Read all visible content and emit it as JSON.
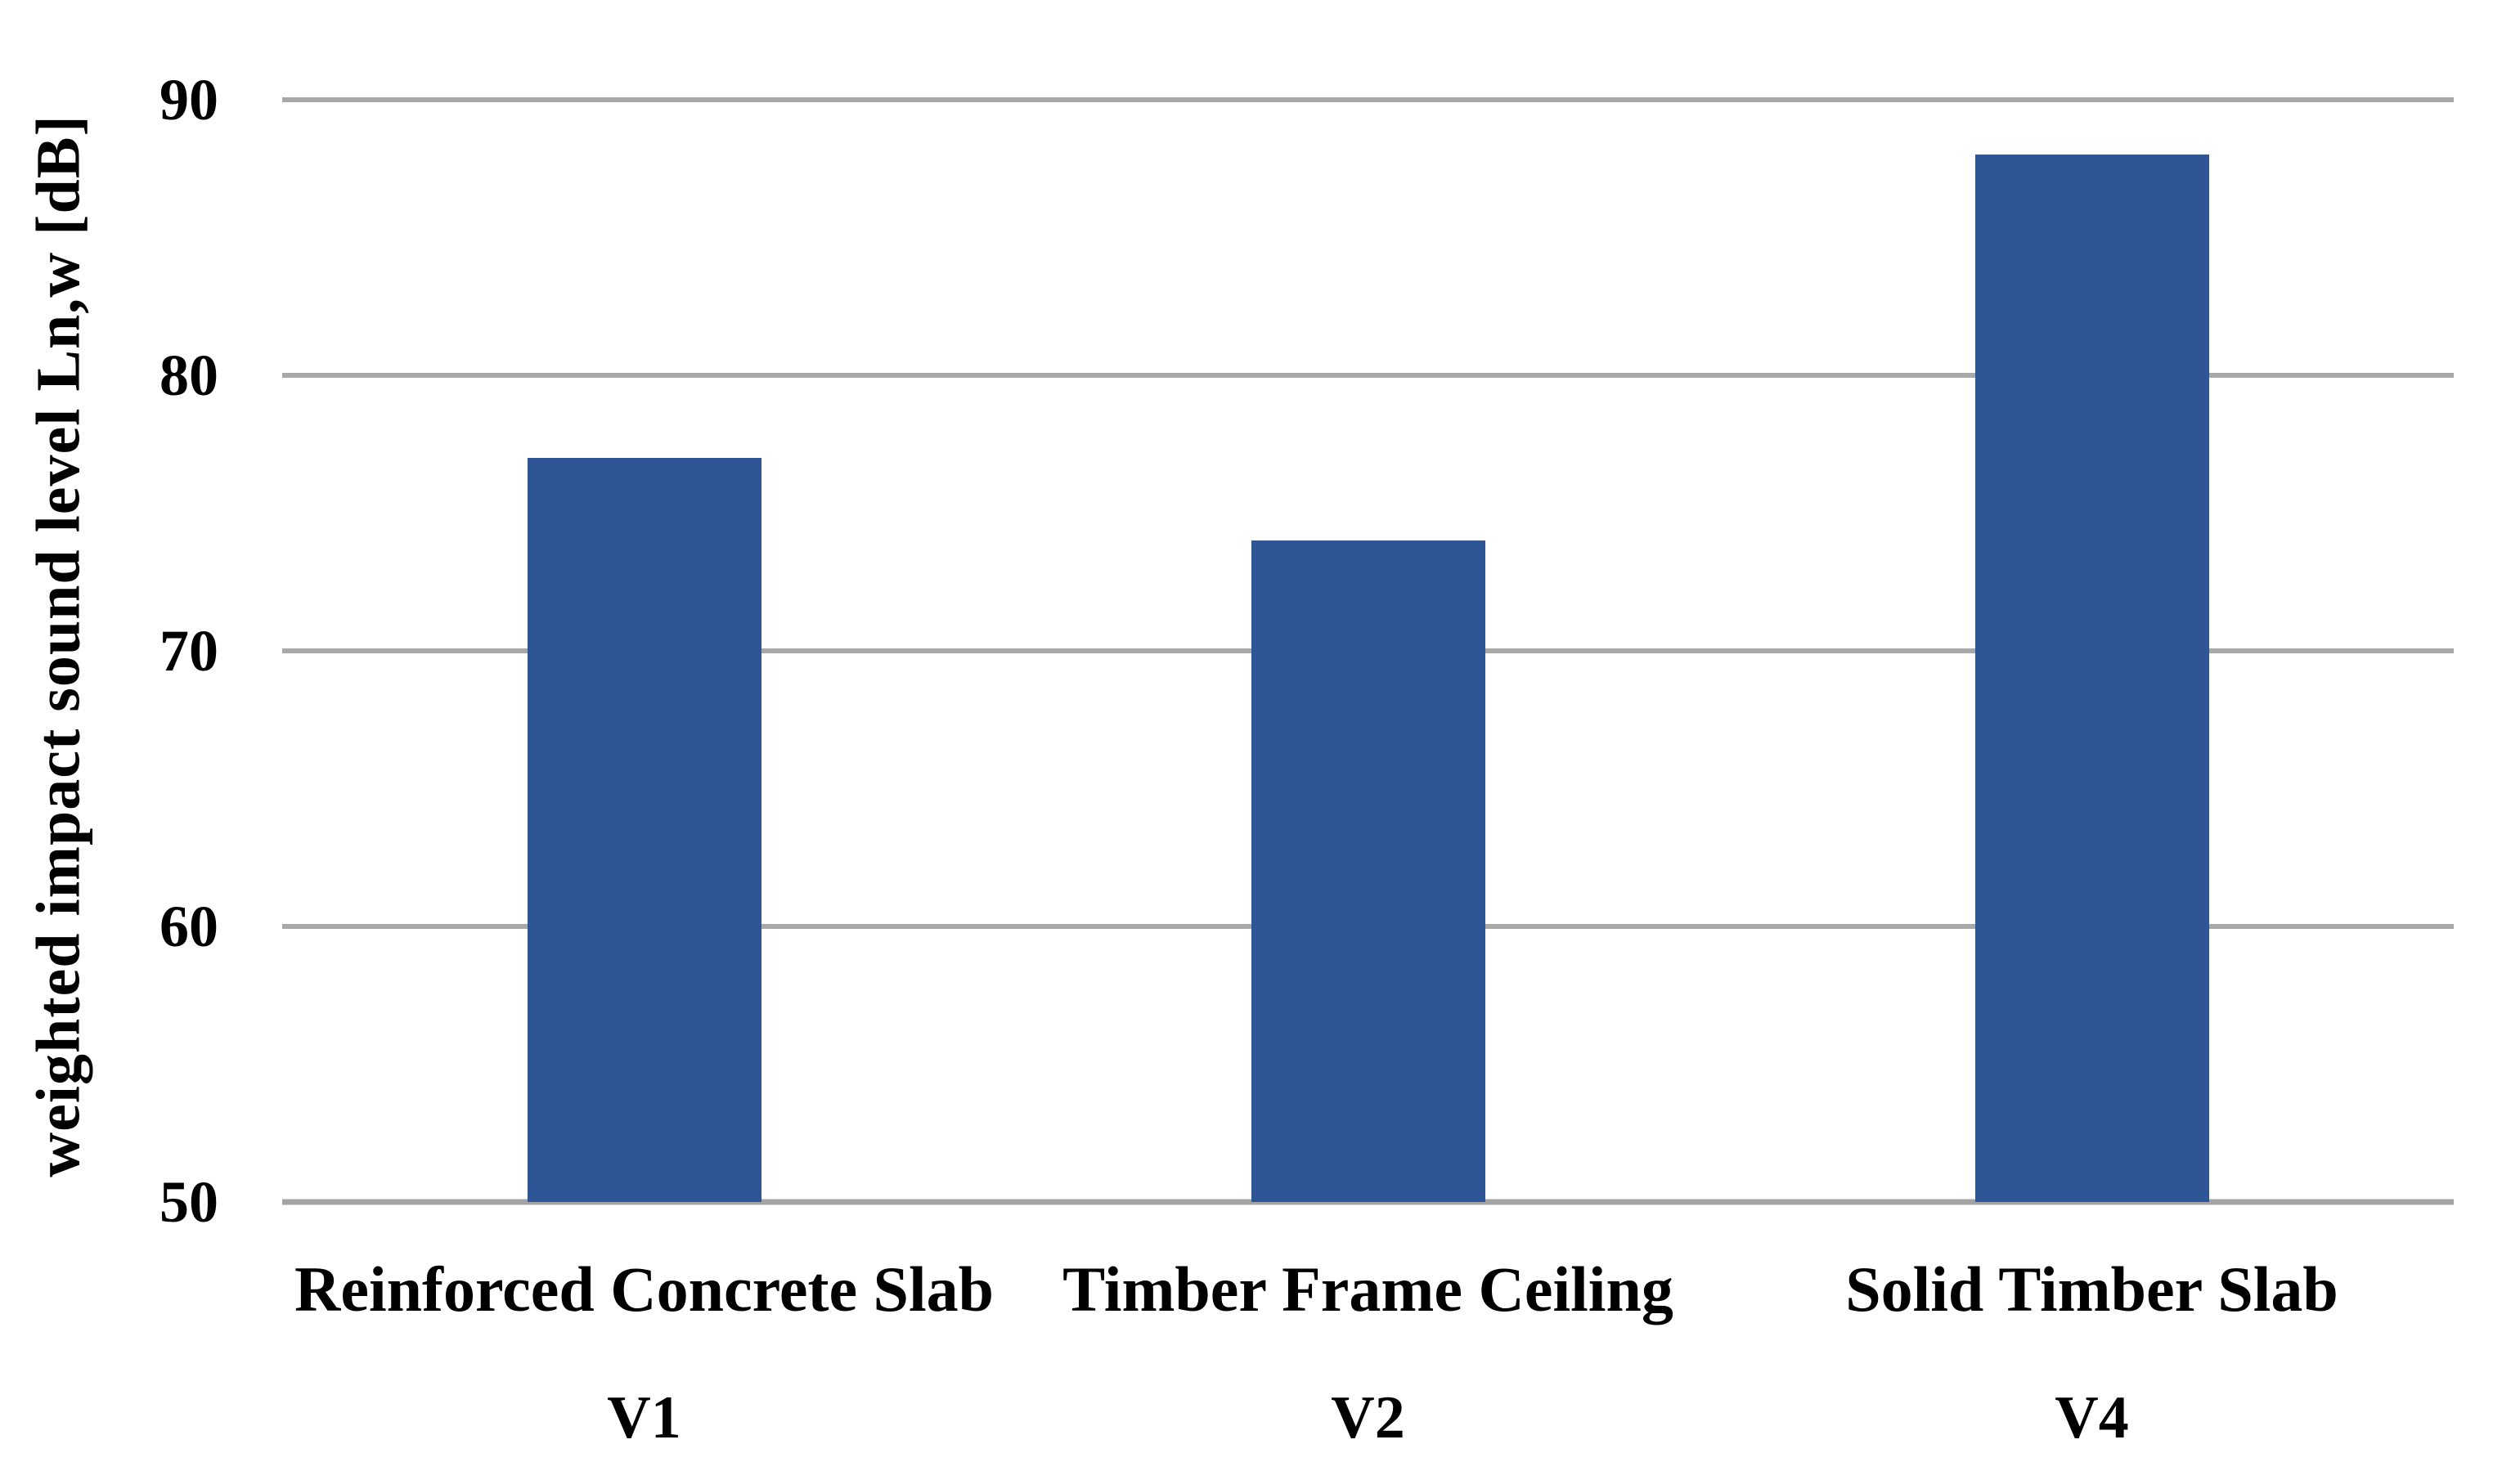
{
  "chart_data": {
    "type": "bar",
    "title": "",
    "ylabel": "weighted impact sound level Ln,w [dB]",
    "xlabel": "",
    "categories": [
      "Reinforced Concrete Slab",
      "Timber Frame Ceiling",
      "Solid Timber Slab"
    ],
    "variant_labels": [
      "V1",
      "V2",
      "V4"
    ],
    "values": [
      77,
      74,
      88
    ],
    "ylim": [
      50,
      90
    ],
    "ytick_step": 10,
    "yticks": [
      "50",
      "60",
      "70",
      "80",
      "90"
    ],
    "grid": "horizontal",
    "legend": "none",
    "bar_color": "#2E5596",
    "gridline_color": "#A8A8A8",
    "axis_line_color": "#A3A3A3",
    "text_color": "#000000",
    "background_color": "#FFFFFF"
  }
}
